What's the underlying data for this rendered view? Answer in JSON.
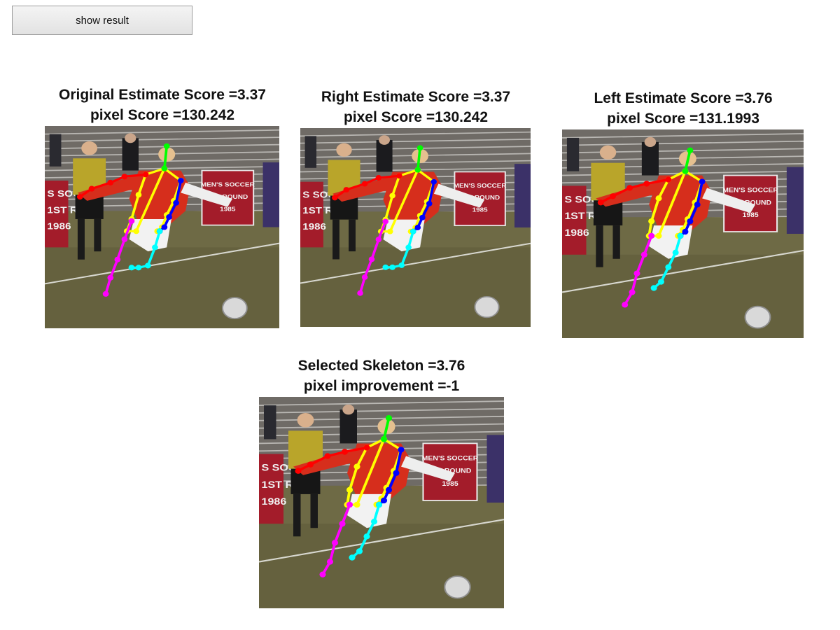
{
  "toolbar": {
    "show_result_label": "show result"
  },
  "panels": {
    "original": {
      "line1": "Original Estimate Score =3.37",
      "line2": "pixel Score =130.242"
    },
    "right": {
      "line1": "Right Estimate Score =3.37",
      "line2": "pixel Score =130.242"
    },
    "left": {
      "line1": "Left Estimate Score =3.76",
      "line2": "pixel Score =131.1993"
    },
    "selected": {
      "line1": "Selected Skeleton =3.76",
      "line2": "pixel improvement =-1"
    }
  },
  "photo": {
    "banner_text": [
      "MEN'S SOCCER",
      "1ST ROUND",
      "1985"
    ],
    "side_banner_text": [
      "S SOCC",
      "1ST R",
      "1986"
    ]
  },
  "skeleton_colors": {
    "head": "#00ff00",
    "torso": "#ffff00",
    "right_arm": "#0000ff",
    "left_arm": "#ff0000",
    "left_leg": "#ff00ff",
    "right_leg": "#00ffff"
  }
}
